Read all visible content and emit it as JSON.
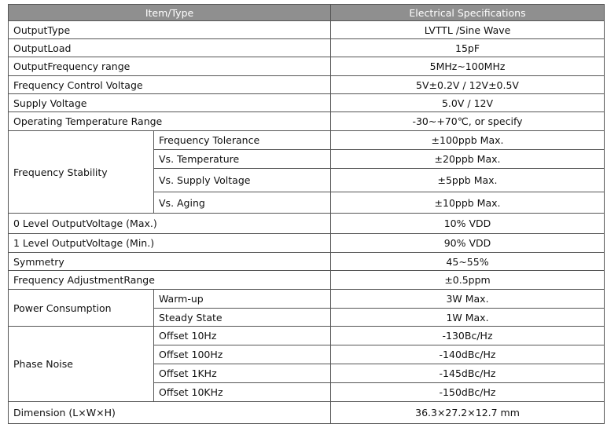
{
  "table": {
    "header": [
      "Item/Type",
      "Electrical  Specifications"
    ],
    "rows": [
      {
        "item": "OutputType",
        "spec": "LVTTL  /Sine Wave"
      },
      {
        "item": "OutputLoad",
        "spec": "15pF"
      },
      {
        "item": "OutputFrequency range",
        "spec": "5MHz~100MHz"
      },
      {
        "item": "Frequency Control Voltage",
        "spec": "5V±0.2V  / 12V±0.5V"
      },
      {
        "item": "Supply Voltage",
        "spec": "5.0V  / 12V"
      },
      {
        "item": "Operating Temperature Range",
        "spec": "-30~+70℃,  or specify"
      },
      {
        "item": "Frequency Stability",
        "sub": [
          {
            "label": "Frequency Tolerance",
            "spec": "±100ppb Max."
          },
          {
            "label": "Vs.  Temperature",
            "spec": "±20ppb Max."
          },
          {
            "label": "Vs.  Supply Voltage",
            "spec": "±5ppb Max."
          },
          {
            "label": "Vs.  Aging",
            "spec": "±10ppb Max."
          }
        ]
      },
      {
        "item": "0 Level OutputVoltage (Max.)",
        "spec": "10% VDD"
      },
      {
        "item": "1 Level OutputVoltage (Min.)",
        "spec": "90% VDD"
      },
      {
        "item": "Symmetry",
        "spec": "45~55%"
      },
      {
        "item": "Frequency AdjustmentRange",
        "spec": "±0.5ppm"
      },
      {
        "item": "Power Consumption",
        "sub": [
          {
            "label": "Warm-up",
            "spec": "3W Max."
          },
          {
            "label": "Steady State",
            "spec": "1W Max."
          }
        ]
      },
      {
        "item": "Phase  Noise",
        "sub": [
          {
            "label": "Offset 10Hz",
            "spec": "-130Bc/Hz"
          },
          {
            "label": "Offset 100Hz",
            "spec": "-140dBc/Hz"
          },
          {
            "label": "Offset 1KHz",
            "spec": "-145dBc/Hz"
          },
          {
            "label": "Offset 10KHz",
            "spec": "-150dBc/Hz"
          }
        ]
      },
      {
        "item": "Dimension (L×W×H)",
        "spec": "36.3×27.2×12.7 mm"
      }
    ]
  }
}
